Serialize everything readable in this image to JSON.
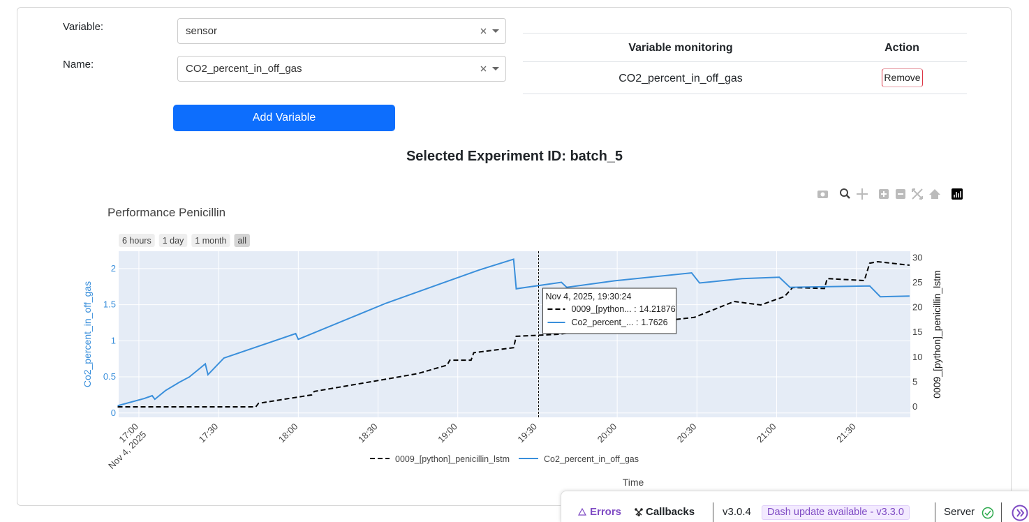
{
  "form": {
    "variable_label": "Variable:",
    "variable_value": "sensor",
    "name_label": "Name:",
    "name_value": "CO2_percent_in_off_gas",
    "add_button": "Add Variable"
  },
  "table": {
    "headers": [
      "Variable monitoring",
      "Action"
    ],
    "rows": [
      [
        "CO2_percent_in_off_gas",
        "Remove"
      ]
    ]
  },
  "experiment_title": "Selected Experiment ID: batch_5",
  "chart_data": {
    "type": "line",
    "title": "Performance Penicillin",
    "range_buttons": [
      "6 hours",
      "1 day",
      "1 month",
      "all"
    ],
    "active_range": "all",
    "x_label": "Time",
    "y_label": "Co2_percent_in_off_gas",
    "y2_label": "0009_[python]_penicillin_lstm",
    "xlim": [
      "2025-11-04T16:52:24",
      "2025-11-04T21:50:18"
    ],
    "xticks": [
      {
        "value": "2025-11-04T17:00",
        "label": "17:00"
      },
      {
        "value": "2025-11-04T17:30",
        "label": "17:30"
      },
      {
        "value": "2025-11-04T18:00",
        "label": "18:00"
      },
      {
        "value": "2025-11-04T18:30",
        "label": "18:30"
      },
      {
        "value": "2025-11-04T19:00",
        "label": "19:00"
      },
      {
        "value": "2025-11-04T19:30",
        "label": "19:30"
      },
      {
        "value": "2025-11-04T20:00",
        "label": "20:00"
      },
      {
        "value": "2025-11-04T20:30",
        "label": "20:30"
      },
      {
        "value": "2025-11-04T21:00",
        "label": "21:00"
      },
      {
        "value": "2025-11-04T21:30",
        "label": "21:30"
      }
    ],
    "xtick_date": "Nov 4, 2025",
    "ylim": [
      -0.06,
      2.24
    ],
    "yticks": [
      0,
      0.5,
      1,
      1.5,
      2
    ],
    "y2lim": [
      -2.1,
      31.3
    ],
    "y2ticks": [
      0,
      5,
      10,
      15,
      20,
      25,
      30
    ],
    "grid": true,
    "legend": "bottom",
    "series": [
      {
        "name": "0009_[python]_penicillin_lstm",
        "color": "#000000",
        "dash": "dash",
        "axis": "y2",
        "x": [
          "2025-11-04T16:52",
          "2025-11-04T17:44",
          "2025-11-04T17:45",
          "2025-11-04T17:53",
          "2025-11-04T18:05",
          "2025-11-04T18:06",
          "2025-11-04T18:18",
          "2025-11-04T18:30",
          "2025-11-04T18:45",
          "2025-11-04T18:56",
          "2025-11-04T18:57",
          "2025-11-04T19:05",
          "2025-11-04T19:06",
          "2025-11-04T19:21",
          "2025-11-04T19:22",
          "2025-11-04T19:38",
          "2025-11-04T20:04",
          "2025-11-04T20:29",
          "2025-11-04T20:44",
          "2025-11-04T20:54",
          "2025-11-04T21:03",
          "2025-11-04T21:06",
          "2025-11-04T21:18",
          "2025-11-04T21:19",
          "2025-11-04T21:33",
          "2025-11-04T21:35",
          "2025-11-04T21:38",
          "2025-11-04T21:50"
        ],
        "values": [
          0,
          0,
          0.7,
          1.4,
          2.4,
          3.1,
          4.2,
          5.3,
          6.7,
          8.4,
          9.4,
          9.4,
          10.9,
          11.9,
          14.2,
          14.6,
          16.5,
          18.0,
          21.2,
          20.5,
          22.2,
          24.0,
          23.8,
          25.8,
          25.4,
          28.9,
          29.2,
          28.5
        ]
      },
      {
        "name": "Co2_percent_in_off_gas",
        "color": "#3a8fdb",
        "axis": "y",
        "x": [
          "2025-11-04T16:52",
          "2025-11-04T17:02",
          "2025-11-04T17:05",
          "2025-11-04T17:06",
          "2025-11-04T17:10",
          "2025-11-04T17:15",
          "2025-11-04T17:19",
          "2025-11-04T17:25",
          "2025-11-04T17:26",
          "2025-11-04T17:32",
          "2025-11-04T17:59",
          "2025-11-04T18:00",
          "2025-11-04T18:33",
          "2025-11-04T19:08",
          "2025-11-04T19:21",
          "2025-11-04T19:22",
          "2025-11-04T19:39",
          "2025-11-04T19:41",
          "2025-11-04T19:59",
          "2025-11-04T20:28",
          "2025-11-04T20:31",
          "2025-11-04T20:47",
          "2025-11-04T21:01",
          "2025-11-04T21:05",
          "2025-11-04T21:35",
          "2025-11-04T21:39",
          "2025-11-04T21:50"
        ],
        "values": [
          0.1,
          0.2,
          0.24,
          0.19,
          0.31,
          0.42,
          0.5,
          0.68,
          0.53,
          0.76,
          1.1,
          1.02,
          1.52,
          1.98,
          2.13,
          1.72,
          1.81,
          1.74,
          1.83,
          1.94,
          1.8,
          1.86,
          1.88,
          1.74,
          1.76,
          1.61,
          1.62
        ]
      }
    ],
    "hover": {
      "x": "2025-11-04T19:30:24",
      "label": "Nov 4, 2025, 19:30:24",
      "items": [
        {
          "name": "0009_[python... :",
          "value": 14.21876
        },
        {
          "name": "Co2_percent_... :",
          "value": 1.7626
        }
      ]
    }
  },
  "devtools": {
    "errors": "Errors",
    "callbacks": "Callbacks",
    "version": "v3.0.4",
    "update": "Dash update available - v3.3.0",
    "server": "Server"
  }
}
